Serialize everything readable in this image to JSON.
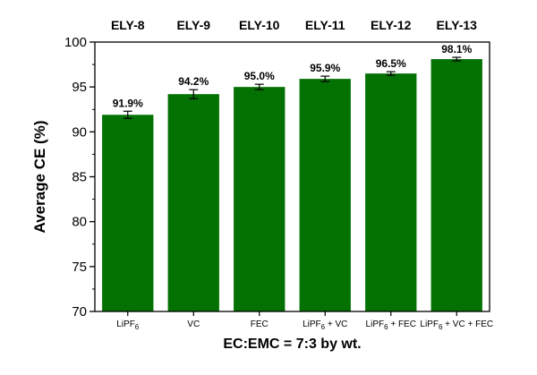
{
  "chart_data": {
    "type": "bar",
    "top_labels": [
      "ELY-8",
      "ELY-9",
      "ELY-10",
      "ELY-11",
      "ELY-12",
      "ELY-13"
    ],
    "categories": [
      {
        "base": "LiPF",
        "sub": "6",
        "rest": ""
      },
      {
        "base": "VC",
        "sub": "",
        "rest": ""
      },
      {
        "base": "FEC",
        "sub": "",
        "rest": ""
      },
      {
        "base": "LiPF",
        "sub": "6",
        "rest": " + VC"
      },
      {
        "base": "LiPF",
        "sub": "6",
        "rest": " + FEC"
      },
      {
        "base": "LiPF",
        "sub": "6",
        "rest": " + VC + FEC"
      }
    ],
    "values": [
      91.9,
      94.2,
      95.0,
      95.9,
      96.5,
      98.1
    ],
    "value_labels": [
      "91.9%",
      "94.2%",
      "95.0%",
      "95.9%",
      "96.5%",
      "98.1%"
    ],
    "errors": [
      0.4,
      0.5,
      0.3,
      0.3,
      0.2,
      0.2
    ],
    "ylim": [
      70,
      100
    ],
    "yticks": [
      70,
      75,
      80,
      85,
      90,
      95,
      100
    ],
    "ylabel": "Average CE (%)",
    "xlabel": "EC:EMC = 7:3 by wt.",
    "bar_color": "#037203",
    "grid": false
  }
}
